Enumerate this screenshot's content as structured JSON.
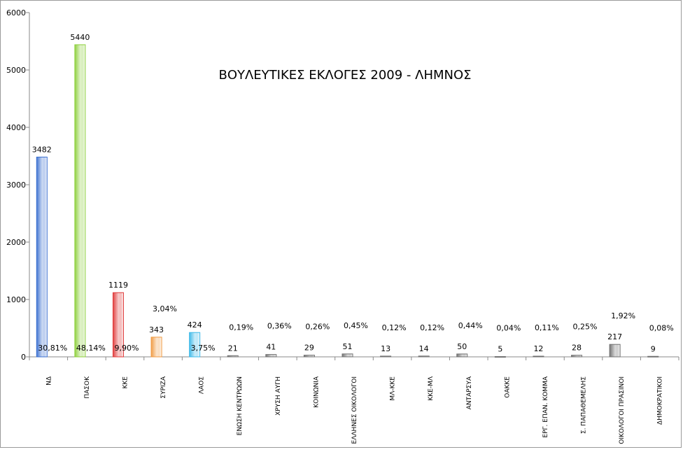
{
  "chart_data": {
    "type": "bar",
    "title": "ΒΟΥΛΕΥΤΙΚΕΣ ΕΚΛΟΓΕΣ 2009 - ΛΗΜΝΟΣ",
    "xlabel": "",
    "ylabel": "",
    "ylim": [
      0,
      6000
    ],
    "yticks": [
      0,
      1000,
      2000,
      3000,
      4000,
      5000,
      6000
    ],
    "grid": false,
    "legend": "none",
    "categories": [
      "ΝΔ",
      "ΠΑΣΟΚ",
      "ΚΚΕ",
      "ΣΥΡΙΖΑ",
      "ΛΑΟΣ",
      "ΕΝΩΣΗ ΚΕΝΤΡΩΩΝ",
      "ΧΡΥΣΗ ΑΥΓΗ",
      "ΚΟΙΝΩΝΙΑ",
      "ΕΛΛΗΝΕΣ ΟΙΚΟΛΟΓΟΙ",
      "ΜΛ-ΚΚΕ",
      "ΚΚΕ-ΜΛ",
      "ΑΝΤΑΡΣΥΑ",
      "ΟΑΚΚΕ",
      "ΕΡΓ. ΕΠΑΝ. ΚΟΜΜΑ",
      "Σ. ΠΑΠΑΘΕΜΕΛΗΣ",
      "ΟΙΚΟΛΟΓΟΙ ΠΡΑΣΙΝΟΙ",
      "ΔΗΜΟΚΡΑΤΙΚΟΙ"
    ],
    "values": [
      3482,
      5440,
      1119,
      343,
      424,
      21,
      41,
      29,
      51,
      13,
      14,
      50,
      5,
      12,
      28,
      217,
      9
    ],
    "percent_labels": [
      "30,81%",
      "48,14%",
      "9,90%",
      "3,04%",
      "3,75%",
      "0,19%",
      "0,36%",
      "0,26%",
      "0,45%",
      "0,12%",
      "0,12%",
      "0,44%",
      "0,04%",
      "0,11%",
      "0,25%",
      "1,92%",
      "0,08%"
    ],
    "colors": [
      "#3a6fd0",
      "#8ccf3a",
      "#e03a3a",
      "#f09a40",
      "#3ab8e8",
      "#707070",
      "#707070",
      "#707070",
      "#707070",
      "#707070",
      "#707070",
      "#707070",
      "#707070",
      "#707070",
      "#707070",
      "#707070",
      "#707070"
    ]
  }
}
